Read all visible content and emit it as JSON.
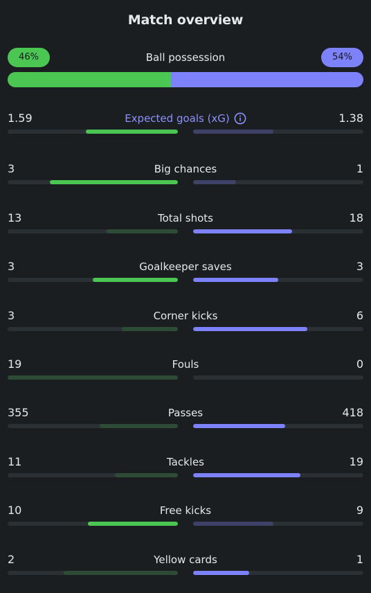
{
  "header": {
    "title": "Match overview"
  },
  "possession": {
    "label": "Ball possession",
    "home_pct": "46%",
    "away_pct": "54%",
    "home_fraction": 0.46,
    "away_fraction": 0.54,
    "home_color": "#4cc653",
    "away_color": "#7d81fa"
  },
  "stats": [
    {
      "label": "Expected goals (xG)",
      "home": "1.59",
      "away": "1.38",
      "home_fill": 0.54,
      "away_fill": 0.47,
      "home_leads": true,
      "away_leads": false,
      "has_info_icon": true,
      "accent_label": true
    },
    {
      "label": "Big chances",
      "home": "3",
      "away": "1",
      "home_fill": 0.75,
      "away_fill": 0.25,
      "home_leads": true,
      "away_leads": false
    },
    {
      "label": "Total shots",
      "home": "13",
      "away": "18",
      "home_fill": 0.42,
      "away_fill": 0.58,
      "home_leads": false,
      "away_leads": true
    },
    {
      "label": "Goalkeeper saves",
      "home": "3",
      "away": "3",
      "home_fill": 0.5,
      "away_fill": 0.5,
      "home_leads": true,
      "away_leads": true
    },
    {
      "label": "Corner kicks",
      "home": "3",
      "away": "6",
      "home_fill": 0.33,
      "away_fill": 0.67,
      "home_leads": false,
      "away_leads": true
    },
    {
      "label": "Fouls",
      "home": "19",
      "away": "0",
      "home_fill": 1.0,
      "away_fill": 0.0,
      "home_leads": false,
      "away_leads": true
    },
    {
      "label": "Passes",
      "home": "355",
      "away": "418",
      "home_fill": 0.46,
      "away_fill": 0.54,
      "home_leads": false,
      "away_leads": true
    },
    {
      "label": "Tackles",
      "home": "11",
      "away": "19",
      "home_fill": 0.37,
      "away_fill": 0.63,
      "home_leads": false,
      "away_leads": true
    },
    {
      "label": "Free kicks",
      "home": "10",
      "away": "9",
      "home_fill": 0.53,
      "away_fill": 0.47,
      "home_leads": true,
      "away_leads": false
    },
    {
      "label": "Yellow cards",
      "home": "2",
      "away": "1",
      "home_fill": 0.67,
      "away_fill": 0.33,
      "home_leads": false,
      "away_leads": true
    }
  ],
  "icons": {
    "info": "info-circle-icon"
  }
}
